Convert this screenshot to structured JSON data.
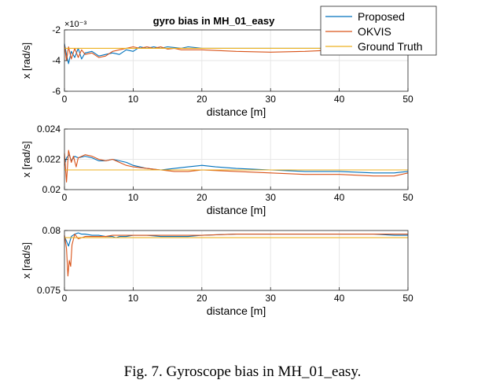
{
  "figure": {
    "caption": "Fig. 7.    Gyroscope bias in MH_01_easy."
  },
  "chart_data": [
    {
      "type": "line",
      "title": "gyro bias in MH_01_easy",
      "xlabel": "distance [m]",
      "ylabel": "x [rad/s]",
      "xlim": [
        0,
        50
      ],
      "ylim": [
        -6,
        -2
      ],
      "y_exponent_label": "×10⁻³",
      "xticks": [
        0,
        10,
        20,
        30,
        40,
        50
      ],
      "yticks": [
        -6,
        -4,
        -2
      ],
      "ytick_labels": [
        "-6",
        "-4",
        "-2"
      ],
      "grid": true,
      "legend": "top-right",
      "series": [
        {
          "name": "Proposed",
          "color": "#0072BD",
          "x": [
            0,
            0.3,
            0.6,
            1,
            1.5,
            2,
            2.5,
            3,
            4,
            5,
            6,
            7,
            8,
            9,
            10,
            11,
            12,
            13,
            14,
            15,
            16,
            17,
            18,
            20,
            25,
            30,
            35,
            40,
            45,
            50
          ],
          "y": [
            -2.9,
            -3.6,
            -4.2,
            -3.4,
            -3.8,
            -3.2,
            -3.9,
            -3.5,
            -3.4,
            -3.7,
            -3.6,
            -3.5,
            -3.6,
            -3.3,
            -3.4,
            -3.1,
            -3.2,
            -3.1,
            -3.2,
            -3.1,
            -3.15,
            -3.2,
            -3.1,
            -3.2,
            -3.2,
            -3.2,
            -3.2,
            -3.2,
            -3.2,
            -3.25
          ]
        },
        {
          "name": "OKVIS",
          "color": "#D95319",
          "x": [
            0,
            0.3,
            0.6,
            1,
            1.5,
            2,
            2.5,
            3,
            4,
            5,
            6,
            7,
            8,
            9,
            10,
            11,
            12,
            13,
            14,
            15,
            16,
            17,
            18,
            20,
            25,
            30,
            35,
            40,
            45,
            50
          ],
          "y": [
            -3.0,
            -4.0,
            -3.1,
            -3.9,
            -3.2,
            -3.8,
            -3.3,
            -3.6,
            -3.5,
            -3.8,
            -3.7,
            -3.4,
            -3.3,
            -3.2,
            -3.1,
            -3.2,
            -3.1,
            -3.2,
            -3.1,
            -3.25,
            -3.2,
            -3.3,
            -3.3,
            -3.3,
            -3.4,
            -3.45,
            -3.4,
            -3.3,
            -3.3,
            -3.3
          ]
        },
        {
          "name": "Ground Truth",
          "color": "#EDB120",
          "x": [
            0,
            50
          ],
          "y": [
            -3.2,
            -3.2
          ]
        }
      ]
    },
    {
      "type": "line",
      "title": "",
      "xlabel": "distance [m]",
      "ylabel": "x [rad/s]",
      "xlim": [
        0,
        50
      ],
      "ylim": [
        0.02,
        0.024
      ],
      "xticks": [
        0,
        10,
        20,
        30,
        40,
        50
      ],
      "yticks": [
        0.02,
        0.022,
        0.024
      ],
      "ytick_labels": [
        "0.02",
        "0.022",
        "0.024"
      ],
      "grid": true,
      "series": [
        {
          "name": "Proposed",
          "color": "#0072BD",
          "x": [
            0,
            0.3,
            0.7,
            1,
            1.5,
            2,
            3,
            4,
            5,
            6,
            7,
            8,
            9,
            10,
            12,
            14,
            16,
            18,
            20,
            22,
            25,
            30,
            35,
            40,
            45,
            48,
            50
          ],
          "y": [
            0.0216,
            0.0221,
            0.0223,
            0.0219,
            0.0222,
            0.0221,
            0.0222,
            0.0221,
            0.0219,
            0.0219,
            0.022,
            0.0219,
            0.0218,
            0.0216,
            0.0214,
            0.0213,
            0.0214,
            0.0215,
            0.0216,
            0.0215,
            0.0214,
            0.0213,
            0.0212,
            0.0212,
            0.0211,
            0.0211,
            0.0212
          ]
        },
        {
          "name": "OKVIS",
          "color": "#D95319",
          "x": [
            0,
            0.3,
            0.6,
            1,
            1.3,
            1.7,
            2,
            3,
            4,
            5,
            6,
            7,
            8,
            9,
            10,
            12,
            14,
            16,
            18,
            20,
            25,
            30,
            35,
            40,
            45,
            48,
            50
          ],
          "y": [
            0.0224,
            0.0205,
            0.0226,
            0.0218,
            0.0222,
            0.0215,
            0.0221,
            0.0223,
            0.0222,
            0.022,
            0.0219,
            0.022,
            0.0218,
            0.0216,
            0.0215,
            0.0214,
            0.0213,
            0.0212,
            0.0212,
            0.0213,
            0.0212,
            0.0211,
            0.021,
            0.021,
            0.0209,
            0.0209,
            0.0211
          ]
        },
        {
          "name": "Ground Truth",
          "color": "#EDB120",
          "x": [
            0,
            50
          ],
          "y": [
            0.0213,
            0.0213
          ]
        }
      ]
    },
    {
      "type": "line",
      "title": "",
      "xlabel": "distance [m]",
      "ylabel": "x [rad/s]",
      "xlim": [
        0,
        50
      ],
      "ylim": [
        0.075,
        0.08
      ],
      "xticks": [
        0,
        10,
        20,
        30,
        40,
        50
      ],
      "yticks": [
        0.075,
        0.08
      ],
      "ytick_labels": [
        "0.075",
        "0.08"
      ],
      "grid": true,
      "series": [
        {
          "name": "Proposed",
          "color": "#0072BD",
          "x": [
            0,
            0.3,
            0.6,
            1,
            1.5,
            2,
            2.5,
            3,
            4,
            5,
            6,
            7,
            7.5,
            8,
            9,
            10,
            12,
            14,
            16,
            18,
            20,
            25,
            30,
            35,
            40,
            45,
            48,
            50
          ],
          "y": [
            0.0795,
            0.0791,
            0.0787,
            0.0795,
            0.0797,
            0.0798,
            0.0797,
            0.0797,
            0.0796,
            0.0796,
            0.0795,
            0.0795,
            0.0794,
            0.0795,
            0.0795,
            0.0796,
            0.0796,
            0.0795,
            0.0795,
            0.0795,
            0.0796,
            0.0797,
            0.0797,
            0.0797,
            0.0797,
            0.0797,
            0.0796,
            0.0796
          ]
        },
        {
          "name": "OKVIS",
          "color": "#D95319",
          "x": [
            0,
            0.3,
            0.5,
            0.7,
            0.9,
            1.1,
            1.5,
            2,
            3,
            4,
            5,
            6,
            7,
            8,
            9,
            10,
            12,
            14,
            16,
            18,
            20,
            25,
            30,
            35,
            40,
            45,
            48,
            50
          ],
          "y": [
            0.0796,
            0.0785,
            0.0762,
            0.0775,
            0.077,
            0.0788,
            0.0797,
            0.0793,
            0.0795,
            0.0795,
            0.0795,
            0.0795,
            0.0796,
            0.0796,
            0.0796,
            0.0796,
            0.0796,
            0.0796,
            0.0796,
            0.0796,
            0.0796,
            0.0797,
            0.0797,
            0.0797,
            0.0797,
            0.0797,
            0.0797,
            0.0797
          ]
        },
        {
          "name": "Ground Truth",
          "color": "#EDB120",
          "x": [
            0,
            50
          ],
          "y": [
            0.0794,
            0.0794
          ]
        }
      ]
    }
  ]
}
